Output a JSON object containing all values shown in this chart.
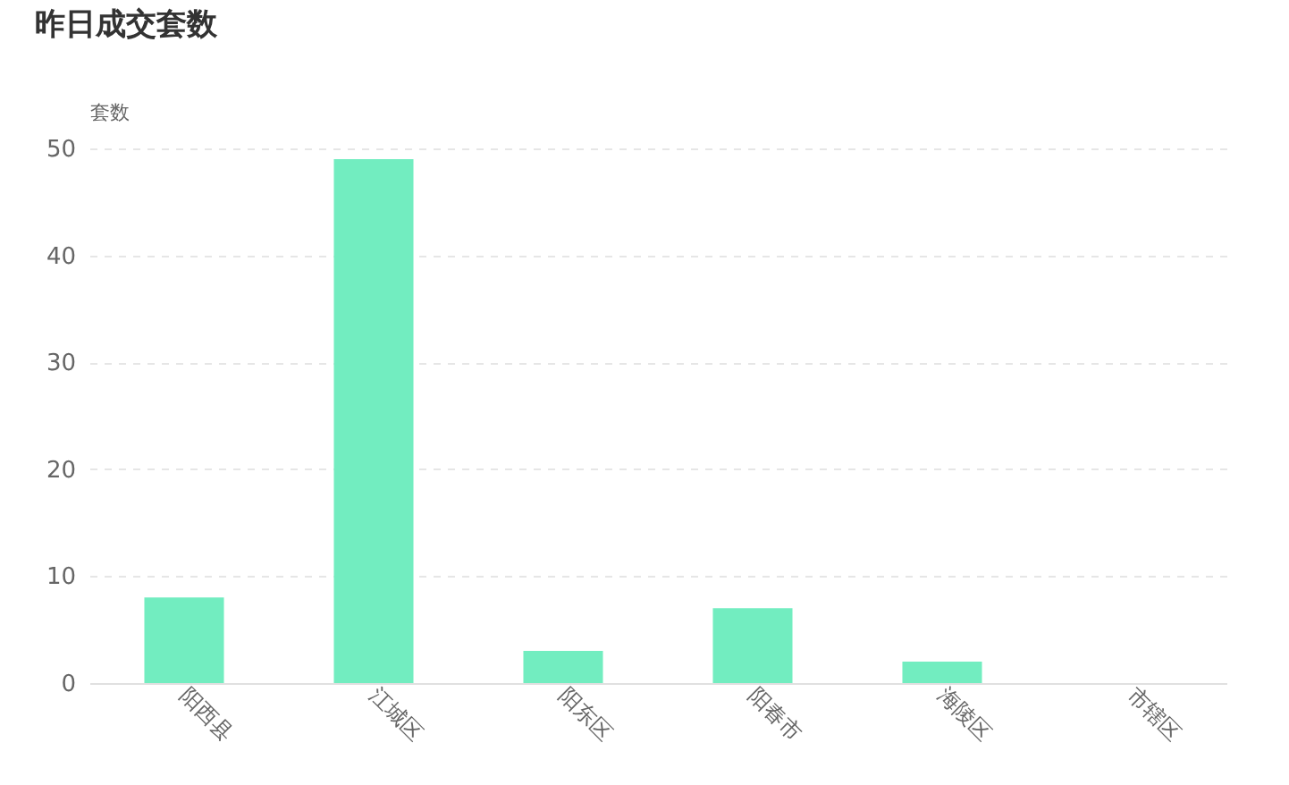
{
  "chart_data": {
    "type": "bar",
    "title": "昨日成交套数",
    "ylabel": "套数",
    "categories": [
      "阳西县",
      "江城区",
      "阳东区",
      "阳春市",
      "海陵区",
      "市辖区"
    ],
    "values": [
      8,
      49,
      3,
      7,
      2,
      0
    ],
    "color": "#72edc0",
    "ylim": [
      0,
      50
    ],
    "yticks": [
      0,
      10,
      20,
      30,
      40,
      50
    ],
    "grid": "y"
  }
}
